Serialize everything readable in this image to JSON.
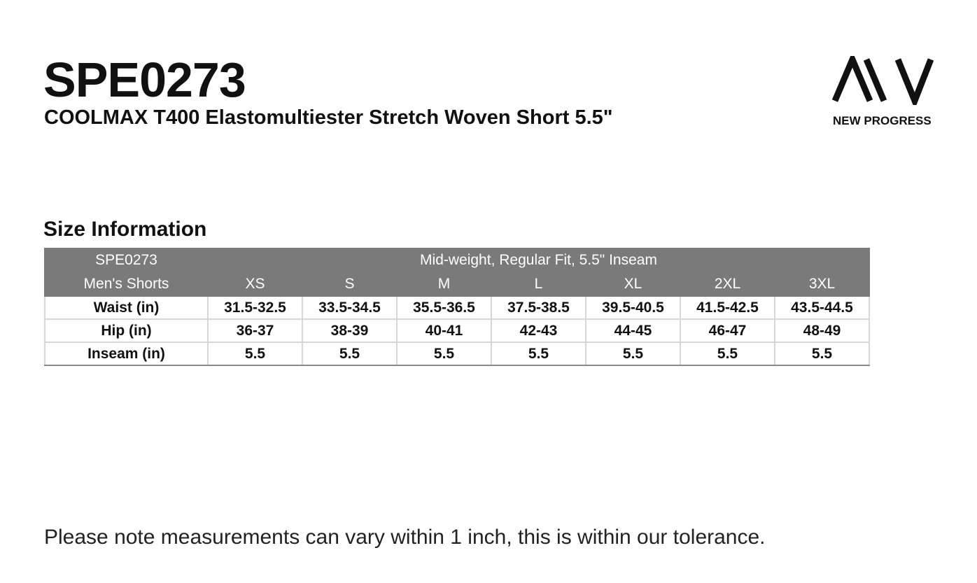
{
  "header": {
    "title": "SPE0273",
    "subtitle": "COOLMAX T400 Elastomultiester Stretch Woven Short 5.5\"",
    "logo_text": "NEW PROGRESS"
  },
  "section_title": "Size Information",
  "table": {
    "header_rows": [
      [
        "SPE0273",
        "Mid-weight, Regular Fit, 5.5\" Inseam"
      ],
      [
        "Men's Shorts",
        "XS",
        "S",
        "M",
        "L",
        "XL",
        "2XL",
        "3XL"
      ]
    ],
    "rows": [
      [
        "Waist (in)",
        "31.5-32.5",
        "33.5-34.5",
        "35.5-36.5",
        "37.5-38.5",
        "39.5-40.5",
        "41.5-42.5",
        "43.5-44.5"
      ],
      [
        "Hip (in)",
        "36-37",
        "38-39",
        "40-41",
        "42-43",
        "44-45",
        "46-47",
        "48-49"
      ],
      [
        "Inseam (in)",
        "5.5",
        "5.5",
        "5.5",
        "5.5",
        "5.5",
        "5.5",
        "5.5"
      ]
    ]
  },
  "note": "Please note measurements can vary within 1 inch, this is within our tolerance."
}
